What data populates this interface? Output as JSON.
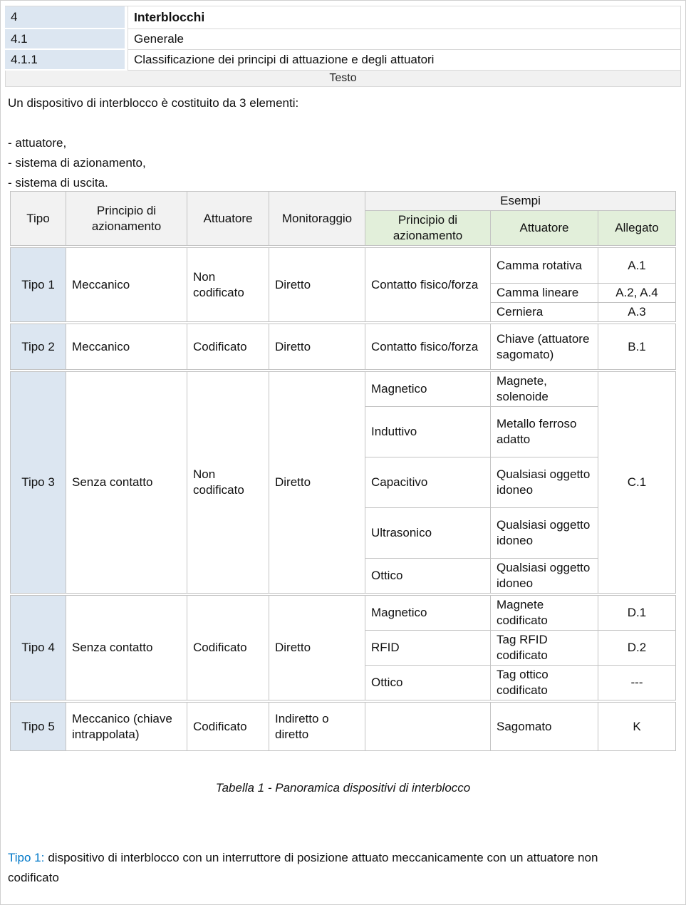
{
  "colors": {
    "clause_cell_blue": "#dce6f1",
    "example_header_green": "#e2efda",
    "header_gray": "#f2f2f2",
    "testo_band_gray": "#f1f1f1",
    "note_label_blue": "#0078c8",
    "table_border": "#c3c3c3"
  },
  "sections": [
    {
      "num": "4",
      "title": "Interblocchi"
    },
    {
      "num": "4.1",
      "title": "Generale"
    },
    {
      "num": "4.1.1",
      "title": "Classificazione dei principi di attuazione e degli attuatori"
    }
  ],
  "testo_label": "Testo",
  "intro": {
    "lead": "Un dispositivo di interblocco è costituito da 3 elementi:",
    "items": [
      "- attuatore,",
      "- sistema di azionamento,",
      "- sistema di uscita."
    ]
  },
  "table": {
    "header": {
      "tipo": "Tipo",
      "principio": "Principio di azionamento",
      "attuatore": "Attuatore",
      "monitoraggio": "Monitoraggio",
      "esempi": "Esempi",
      "esempi_principio": "Principio di azionamento",
      "esempi_attuatore": "Attuatore",
      "allegato": "Allegato"
    },
    "groups": [
      {
        "name": "tipo-1",
        "rows": [
          [
            {
              "t": "Tipo 1",
              "rs": 3
            },
            {
              "t": "Meccanico",
              "rs": 3
            },
            {
              "t": "Non codificato",
              "rs": 3
            },
            {
              "t": "Diretto",
              "rs": 3
            },
            {
              "t": "Contatto fisico/forza",
              "rs": 3
            },
            {
              "t": "Camma rotativa"
            },
            {
              "t": "A.1"
            }
          ],
          [
            {
              "t": "Camma lineare"
            },
            {
              "t": "A.2, A.4"
            }
          ],
          [
            {
              "t": "Cerniera"
            },
            {
              "t": "A.3"
            }
          ]
        ]
      },
      {
        "name": "tipo-2",
        "rows": [
          [
            {
              "t": "Tipo 2"
            },
            {
              "t": "Meccanico"
            },
            {
              "t": "Codificato"
            },
            {
              "t": "Diretto"
            },
            {
              "t": "Contatto fisico/forza"
            },
            {
              "t": "Chiave (attuatore sagomato)"
            },
            {
              "t": "B.1"
            }
          ]
        ]
      },
      {
        "name": "tipo-3",
        "rows": [
          [
            {
              "t": "Tipo 3",
              "rs": 5
            },
            {
              "t": "Senza contatto",
              "rs": 5
            },
            {
              "t": "Non codificato",
              "rs": 5
            },
            {
              "t": "Diretto",
              "rs": 5
            },
            {
              "t": "Magnetico"
            },
            {
              "t": "Magnete, solenoide"
            },
            {
              "t": "C.1",
              "rs": 5
            }
          ],
          [
            {
              "t": "Induttivo"
            },
            {
              "t": "Metallo ferroso adatto"
            }
          ],
          [
            {
              "t": "Capacitivo"
            },
            {
              "t": "Qualsiasi oggetto idoneo"
            }
          ],
          [
            {
              "t": "Ultrasonico"
            },
            {
              "t": "Qualsiasi oggetto idoneo"
            }
          ],
          [
            {
              "t": "Ottico"
            },
            {
              "t": "Qualsiasi oggetto idoneo"
            }
          ]
        ]
      },
      {
        "name": "tipo-4",
        "rows": [
          [
            {
              "t": "Tipo 4",
              "rs": 3
            },
            {
              "t": "Senza contatto",
              "rs": 3
            },
            {
              "t": "Codificato",
              "rs": 3
            },
            {
              "t": "Diretto",
              "rs": 3
            },
            {
              "t": "Magnetico"
            },
            {
              "t": "Magnete codificato"
            },
            {
              "t": "D.1"
            }
          ],
          [
            {
              "t": "RFID"
            },
            {
              "t": "Tag RFID codificato"
            },
            {
              "t": "D.2"
            }
          ],
          [
            {
              "t": "Ottico"
            },
            {
              "t": "Tag ottico codificato"
            },
            {
              "t": "---"
            }
          ]
        ]
      },
      {
        "name": "tipo-5",
        "rows": [
          [
            {
              "t": "Tipo 5"
            },
            {
              "t": "Meccanico (chiave intrappolata)"
            },
            {
              "t": "Codificato"
            },
            {
              "t": "Indiretto o diretto"
            },
            {
              "t": ""
            },
            {
              "t": "Sagomato"
            },
            {
              "t": "K"
            }
          ]
        ]
      }
    ]
  },
  "caption": "Tabella 1 - Panoramica dispositivi di interblocco",
  "note": {
    "label": "Tipo 1:",
    "text": "dispositivo di interblocco con un interruttore di posizione attuato meccanicamente con un attuatore non codificato"
  }
}
